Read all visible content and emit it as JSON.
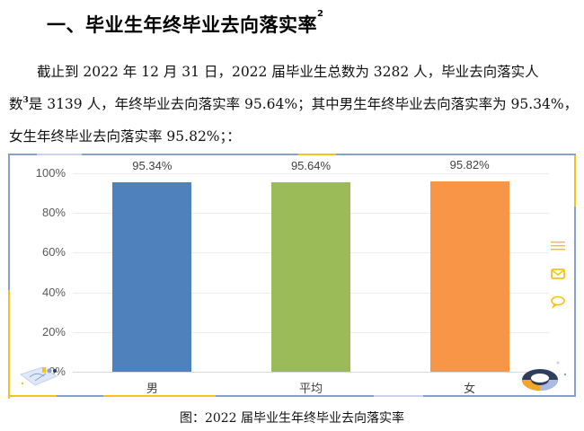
{
  "heading": {
    "text": "一、毕业生年终毕业去向落实率",
    "footnote": "2"
  },
  "paragraph": {
    "line1": "截止到 2022 年 12 月 31 日，2022 届毕业生总数为 3282 人，毕业去向落实人",
    "line2_a": "数",
    "line2_footnote": "3",
    "line2_b": "是 3139 人，年终毕业去向落实率 95.64%；其中男生年终毕业去向落实率为 95.34%，",
    "line3": "女生年终毕业去向落实率 95.82%；："
  },
  "chart_data": {
    "type": "bar",
    "title": "",
    "categories": [
      "男",
      "平均",
      "女"
    ],
    "values": [
      95.34,
      95.64,
      95.82
    ],
    "value_labels": [
      "95.34%",
      "95.64%",
      "95.82%"
    ],
    "colors": [
      "#4f81bd",
      "#9bbb59",
      "#f79646"
    ],
    "xlabel": "",
    "ylabel": "",
    "ylim": [
      0,
      100
    ],
    "yticks": [
      "0%",
      "20%",
      "40%",
      "60%",
      "80%",
      "100%"
    ],
    "grid": true,
    "legend": "none"
  },
  "chart_frame": {
    "side_icons": [
      "menu-icon",
      "mail-icon",
      "comment-icon"
    ],
    "border_color": "#8aa0cc",
    "accent_color": "#f5c21b"
  },
  "caption": "图：2022 届毕业生年终毕业去向落实率"
}
